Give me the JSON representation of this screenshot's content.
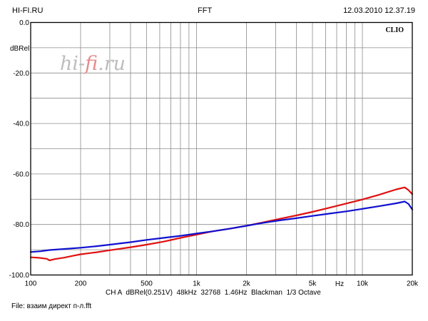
{
  "header": {
    "left": "HI-FI.RU",
    "center": "FFT",
    "right": "12.03.2010 12.37.19"
  },
  "watermark": {
    "text_a": "hi-",
    "text_b": "fi",
    "text_c": ".ru",
    "color": "#bdbdbd",
    "accent": "#e58a8a"
  },
  "brand": "CLIO",
  "footer": {
    "settings": "CH A  dBRel(0.251V)  48kHz  32768  1.46Hz  Blackman  1/3 Octave",
    "file": "File: взаим директ п-л.fft"
  },
  "chart_data": {
    "type": "line",
    "title": "FFT",
    "xlabel": "Hz",
    "ylabel": "dBRel",
    "xscale": "log",
    "xlim": [
      100,
      20000
    ],
    "ylim": [
      -100,
      0
    ],
    "x_ticks": [
      {
        "value": 100,
        "label": "100"
      },
      {
        "value": 200,
        "label": "200"
      },
      {
        "value": 500,
        "label": "500"
      },
      {
        "value": 1000,
        "label": "1k"
      },
      {
        "value": 2000,
        "label": "2k"
      },
      {
        "value": 5000,
        "label": "5k"
      },
      {
        "value": 10000,
        "label": "10k"
      },
      {
        "value": 20000,
        "label": "20k"
      }
    ],
    "y_ticks": [
      {
        "value": 0,
        "label": "0.0"
      },
      {
        "value": -20,
        "label": "-20.0"
      },
      {
        "value": -40,
        "label": "-40.0"
      },
      {
        "value": -60,
        "label": "-60.0"
      },
      {
        "value": -80,
        "label": "-80.0"
      },
      {
        "value": -100,
        "label": "-100.0"
      }
    ],
    "grid": true,
    "series": [
      {
        "color": "#e01010",
        "x": [
          100,
          112,
          125,
          130,
          140,
          160,
          180,
          200,
          250,
          300,
          400,
          500,
          630,
          800,
          1000,
          1250,
          1600,
          2000,
          2500,
          3150,
          4000,
          5000,
          6300,
          8000,
          10000,
          12500,
          16000,
          18000,
          19000,
          20000
        ],
        "y": [
          -93,
          -93.2,
          -93.6,
          -94.2,
          -93.7,
          -93.1,
          -92.4,
          -91.8,
          -91,
          -90.2,
          -89,
          -88,
          -86.8,
          -85.3,
          -84,
          -82.7,
          -81.6,
          -80.5,
          -79.2,
          -77.8,
          -76.4,
          -75,
          -73.4,
          -71.7,
          -70.1,
          -68.3,
          -66.1,
          -65.3,
          -66.4,
          -68
        ]
      },
      {
        "color": "#1010d0",
        "x": [
          100,
          115,
          130,
          160,
          200,
          250,
          300,
          400,
          500,
          630,
          800,
          1000,
          1250,
          1600,
          2000,
          2500,
          3150,
          4000,
          5000,
          6300,
          8000,
          10000,
          12500,
          16000,
          18000,
          19000,
          20000
        ],
        "y": [
          -90.9,
          -90.6,
          -90.1,
          -89.7,
          -89.2,
          -88.6,
          -88,
          -87,
          -86.1,
          -85.3,
          -84.5,
          -83.6,
          -82.7,
          -81.6,
          -80.5,
          -79.4,
          -78.4,
          -77.5,
          -76.6,
          -75.7,
          -74.8,
          -73.8,
          -72.8,
          -71.6,
          -70.9,
          -71.9,
          -74.1
        ]
      }
    ]
  }
}
